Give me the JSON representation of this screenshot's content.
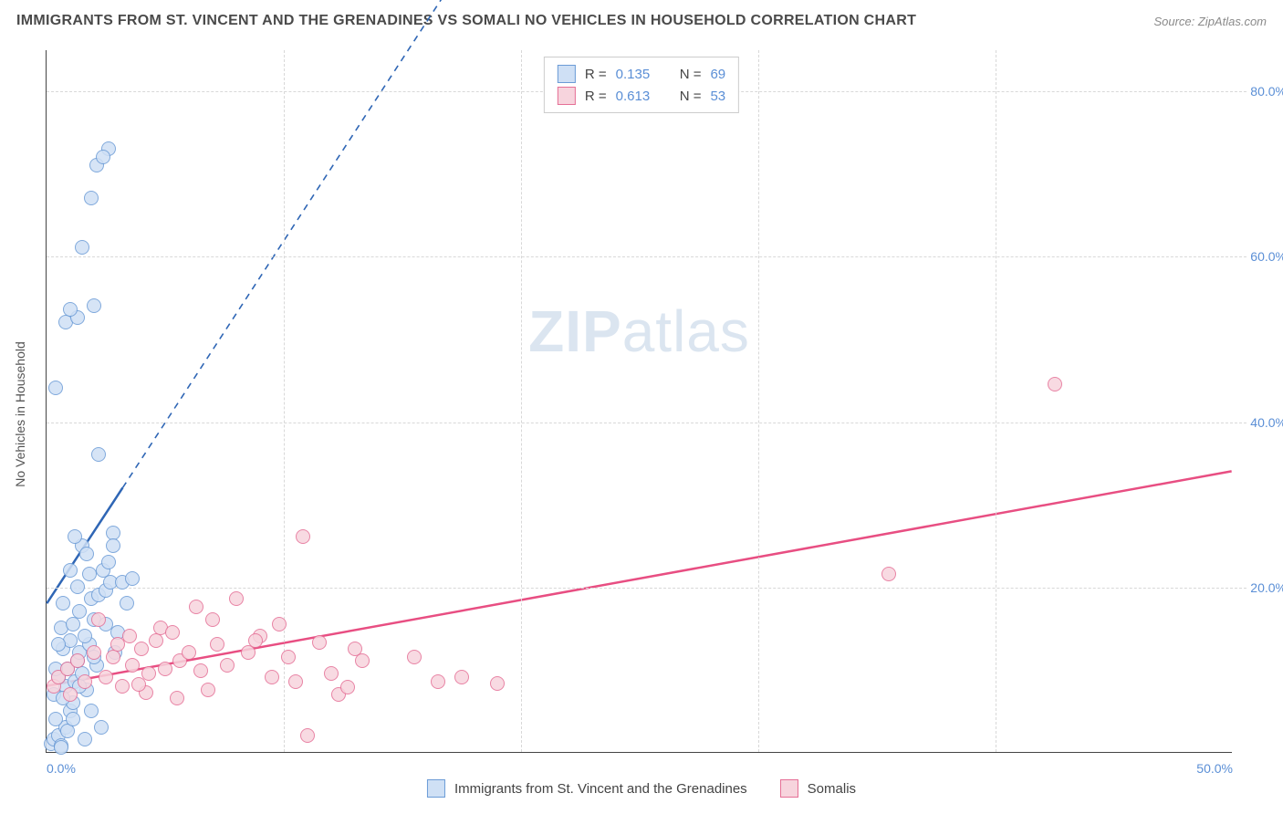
{
  "title": "IMMIGRANTS FROM ST. VINCENT AND THE GRENADINES VS SOMALI NO VEHICLES IN HOUSEHOLD CORRELATION CHART",
  "source": "Source: ZipAtlas.com",
  "y_axis_label": "No Vehicles in Household",
  "watermark": {
    "part1": "ZIP",
    "part2": "atlas"
  },
  "chart": {
    "type": "scatter",
    "xlim": [
      0,
      50
    ],
    "ylim": [
      0,
      85
    ],
    "x_ticks": [
      0,
      10,
      20,
      30,
      40,
      50
    ],
    "y_ticks": [
      20,
      40,
      60,
      80
    ],
    "x_tick_labels": [
      "0.0%",
      "",
      "",
      "",
      "",
      "50.0%"
    ],
    "y_tick_labels": [
      "20.0%",
      "40.0%",
      "60.0%",
      "80.0%"
    ],
    "grid_color": "#d8d8d8",
    "background_color": "#ffffff",
    "axis_color": "#444444",
    "tick_label_color": "#5b8fd6",
    "marker_radius": 8,
    "marker_stroke_width": 1.2
  },
  "series": [
    {
      "name": "Immigrants from St. Vincent and the Grenadines",
      "fill_color": "#cfe0f5",
      "stroke_color": "#6b9bd6",
      "line_color": "#2f66b5",
      "R": "0.135",
      "N": "69",
      "trend": {
        "x1": 0,
        "y1": 18,
        "x2_solid": 3.2,
        "y2_solid": 32,
        "x2_dash": 18.2,
        "y2_dash": 98
      },
      "points": [
        [
          0.2,
          1
        ],
        [
          0.3,
          1.5
        ],
        [
          0.5,
          2
        ],
        [
          0.6,
          0.8
        ],
        [
          0.8,
          3
        ],
        [
          0.4,
          4
        ],
        [
          1,
          5
        ],
        [
          1.1,
          6
        ],
        [
          0.3,
          7
        ],
        [
          0.8,
          8
        ],
        [
          1.2,
          8.5
        ],
        [
          0.5,
          9
        ],
        [
          1.5,
          9.5
        ],
        [
          0.9,
          10
        ],
        [
          1.3,
          11
        ],
        [
          1.4,
          12
        ],
        [
          0.7,
          12.5
        ],
        [
          1.8,
          13
        ],
        [
          1.0,
          13.5
        ],
        [
          1.6,
          14
        ],
        [
          0.6,
          15
        ],
        [
          1.1,
          15.5
        ],
        [
          2.0,
          16
        ],
        [
          1.4,
          17
        ],
        [
          0.7,
          18
        ],
        [
          1.9,
          18.5
        ],
        [
          2.2,
          19
        ],
        [
          2.5,
          19.5
        ],
        [
          1.3,
          20
        ],
        [
          2.7,
          20.5
        ],
        [
          1.8,
          21.5
        ],
        [
          2.4,
          22
        ],
        [
          2.6,
          23
        ],
        [
          3.2,
          20.5
        ],
        [
          1.5,
          25
        ],
        [
          1.2,
          26
        ],
        [
          2.8,
          26.5
        ],
        [
          2.2,
          36
        ],
        [
          0.4,
          44
        ],
        [
          0.8,
          52
        ],
        [
          1.3,
          52.5
        ],
        [
          1.0,
          53.5
        ],
        [
          2.0,
          54
        ],
        [
          1.5,
          61
        ],
        [
          1.9,
          67
        ],
        [
          2.1,
          71
        ],
        [
          2.6,
          73
        ],
        [
          2.4,
          72
        ],
        [
          0.6,
          0.5
        ],
        [
          1.7,
          7.5
        ],
        [
          2.1,
          10.5
        ],
        [
          2.9,
          12
        ],
        [
          1.9,
          5
        ],
        [
          0.9,
          2.5
        ],
        [
          3.4,
          18
        ],
        [
          3.6,
          21
        ],
        [
          0.5,
          13
        ],
        [
          1.1,
          4
        ],
        [
          1.6,
          1.5
        ],
        [
          2.3,
          3
        ],
        [
          0.7,
          6.5
        ],
        [
          1.4,
          8
        ],
        [
          2.0,
          11.5
        ],
        [
          3.0,
          14.5
        ],
        [
          2.5,
          15.5
        ],
        [
          0.4,
          10
        ],
        [
          1.0,
          22
        ],
        [
          1.7,
          24
        ],
        [
          2.8,
          25
        ]
      ]
    },
    {
      "name": "Somalis",
      "fill_color": "#f7d4dd",
      "stroke_color": "#e56f96",
      "line_color": "#e84e82",
      "R": "0.613",
      "N": "53",
      "trend": {
        "x1": 0,
        "y1": 8,
        "x2_solid": 50,
        "y2_solid": 34,
        "x2_dash": 50,
        "y2_dash": 34
      },
      "points": [
        [
          0.3,
          8
        ],
        [
          0.5,
          9
        ],
        [
          0.9,
          10
        ],
        [
          1.0,
          7
        ],
        [
          1.3,
          11
        ],
        [
          1.6,
          8.5
        ],
        [
          2.0,
          12
        ],
        [
          2.2,
          16
        ],
        [
          2.5,
          9
        ],
        [
          2.8,
          11.5
        ],
        [
          3.0,
          13
        ],
        [
          3.2,
          8
        ],
        [
          3.5,
          14
        ],
        [
          3.6,
          10.5
        ],
        [
          4.0,
          12.5
        ],
        [
          4.3,
          9.5
        ],
        [
          4.6,
          13.5
        ],
        [
          4.8,
          15
        ],
        [
          5.0,
          10
        ],
        [
          5.3,
          14.5
        ],
        [
          5.6,
          11
        ],
        [
          6.0,
          12
        ],
        [
          6.3,
          17.5
        ],
        [
          6.5,
          9.8
        ],
        [
          7.0,
          16
        ],
        [
          7.2,
          13
        ],
        [
          7.6,
          10.5
        ],
        [
          8.0,
          18.5
        ],
        [
          8.5,
          12
        ],
        [
          9.0,
          14
        ],
        [
          9.5,
          9
        ],
        [
          9.8,
          15.5
        ],
        [
          10.2,
          11.5
        ],
        [
          10.8,
          26
        ],
        [
          10.5,
          8.5
        ],
        [
          11.0,
          2
        ],
        [
          11.5,
          13.2
        ],
        [
          12.0,
          9.5
        ],
        [
          12.3,
          7
        ],
        [
          12.7,
          7.8
        ],
        [
          13.0,
          12.5
        ],
        [
          13.3,
          11
        ],
        [
          15.5,
          11.5
        ],
        [
          16.5,
          8.5
        ],
        [
          17.5,
          9
        ],
        [
          19.0,
          8.3
        ],
        [
          35.5,
          21.5
        ],
        [
          42.5,
          44.5
        ],
        [
          5.5,
          6.5
        ],
        [
          4.2,
          7.2
        ],
        [
          8.8,
          13.5
        ],
        [
          6.8,
          7.5
        ],
        [
          3.9,
          8.2
        ]
      ]
    }
  ],
  "legend_stats_labels": {
    "R_prefix": "R = ",
    "N_prefix": "N = "
  },
  "bottom_legend": {
    "items": [
      {
        "series_index": 0
      },
      {
        "series_index": 1
      }
    ]
  }
}
